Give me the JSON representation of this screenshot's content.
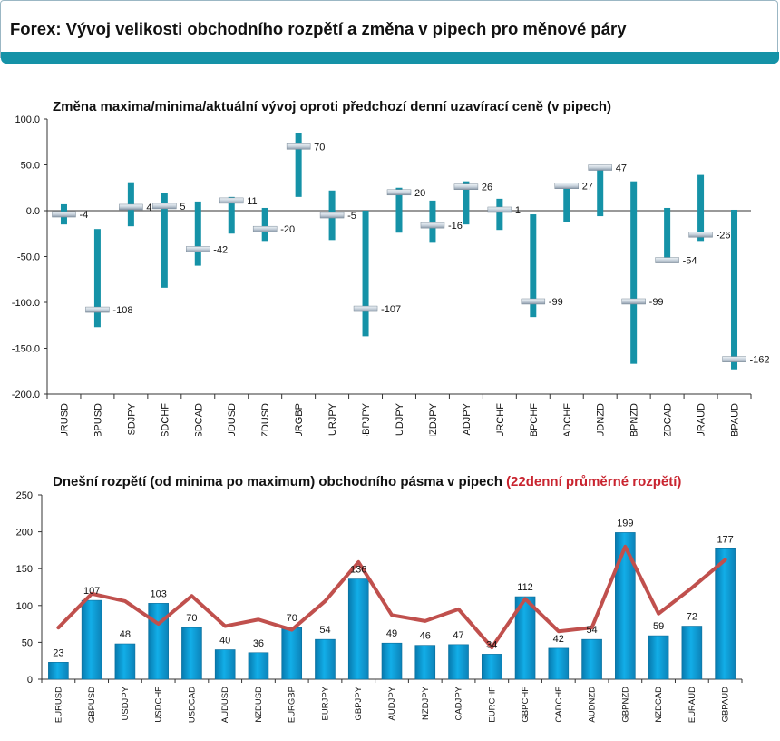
{
  "page": {
    "title": "Forex: Vývoj velikosti obchodního rozpětí a změna v pipech pro měnové páry"
  },
  "chart_data": [
    {
      "type": "stock",
      "title": "Změna maxima/minima/aktuální vývoj oproti předchozí denní uzavírací ceně (v pipech)",
      "categories": [
        "EURUSD",
        "GBPUSD",
        "USDJPY",
        "USDCHF",
        "USDCAD",
        "AUDUSD",
        "NZDUSD",
        "EURGBP",
        "EURJPY",
        "GBPJPY",
        "AUDJPY",
        "NZDJPY",
        "CADJPY",
        "EURCHF",
        "GBPCHF",
        "CADCHF",
        "AUDNZD",
        "GBPNZD",
        "NZDCAD",
        "EURAUD",
        "GBPAUD"
      ],
      "high": [
        7,
        -20,
        31,
        19,
        10,
        15,
        3,
        85,
        22,
        0,
        25,
        11,
        32,
        13,
        -4,
        30,
        50,
        32,
        3,
        39,
        1
      ],
      "low": [
        -15,
        -127,
        -17,
        -84,
        -60,
        -25,
        -33,
        15,
        -32,
        -137,
        -24,
        -35,
        -15,
        -21,
        -116,
        -12,
        -6,
        -167,
        -56,
        -33,
        -173
      ],
      "current": [
        -4,
        -108,
        4,
        5,
        -42,
        11,
        -20,
        70,
        -5,
        -107,
        20,
        -16,
        26,
        1,
        -99,
        27,
        47,
        -99,
        -54,
        -26,
        -162
      ],
      "labels": [
        "-4",
        "-108",
        "4",
        "5",
        "-42",
        "11",
        "-20",
        "70",
        "-5",
        "-107",
        "20",
        "-16",
        "26",
        "1",
        "-99",
        "27",
        "47",
        "-99",
        "-54",
        "-26",
        "-162"
      ],
      "ylim": [
        -200,
        100
      ],
      "ytick_labels": [
        "100.0",
        "50.0",
        "0.0",
        "-50.0",
        "-100.0",
        "-150.0",
        "-200.0"
      ],
      "colors": {
        "range": "#1592a7",
        "marker": "#c8d2dc"
      }
    },
    {
      "type": "bar",
      "title": "Dnešní rozpětí (od minima po maximum) obchodního pásma v pipech",
      "title_accent": "(22denní průměrné rozpětí)",
      "categories": [
        "EURUSD",
        "GBPUSD",
        "USDJPY",
        "USDCHF",
        "USDCAD",
        "AUDUSD",
        "NZDUSD",
        "EURGBP",
        "EURJPY",
        "GBPJPY",
        "AUDJPY",
        "NZDJPY",
        "CADJPY",
        "EURCHF",
        "GBPCHF",
        "CADCHF",
        "AUDNZD",
        "GBPNZD",
        "NZDCAD",
        "EURAUD",
        "GBPAUD"
      ],
      "values": [
        23,
        107,
        48,
        103,
        70,
        40,
        36,
        70,
        54,
        136,
        49,
        46,
        47,
        34,
        112,
        42,
        54,
        199,
        59,
        72,
        177
      ],
      "labels": [
        "23",
        "107",
        "48",
        "103",
        "70",
        "40",
        "36",
        "70",
        "54",
        "136",
        "49",
        "46",
        "47",
        "34",
        "112",
        "42",
        "54",
        "199",
        "59",
        "72",
        "177"
      ],
      "average": [
        70,
        116,
        106,
        75,
        113,
        72,
        81,
        67,
        106,
        159,
        87,
        79,
        95,
        43,
        109,
        65,
        70,
        180,
        89,
        124,
        162
      ],
      "ylim": [
        0,
        250
      ],
      "ytick_labels": [
        "250",
        "200",
        "150",
        "100",
        "50",
        "0"
      ],
      "colors": {
        "bar": "#12aee8",
        "line": "#c0504d"
      }
    }
  ]
}
